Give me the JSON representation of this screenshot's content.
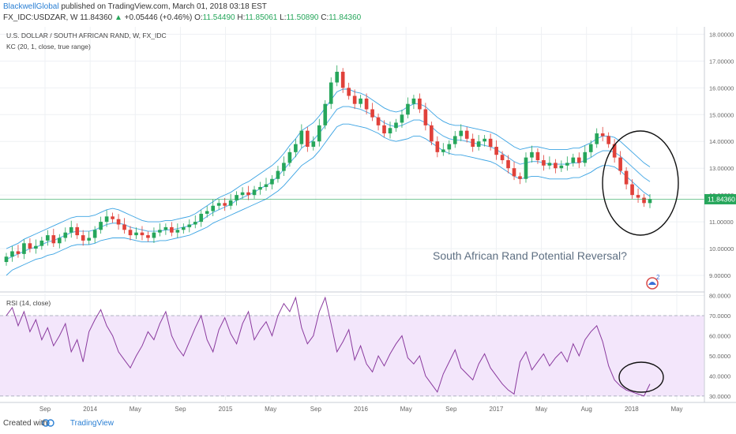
{
  "header": {
    "author": "BlackwellGlobal",
    "published": "published on TradingView.com, March 01, 2018 03:18 EST",
    "symbol": "FX_IDC:USDZAR, W",
    "last": "11.84360",
    "arrow": "▲",
    "change": "+0.05446 (+0.46%)",
    "o_label": "O:",
    "o_value": "11.54490",
    "h_label": "H:",
    "h_value": "11.85061",
    "l_label": "L:",
    "l_value": "11.50890",
    "c_label": "C:",
    "c_value": "11.84360"
  },
  "indicators": {
    "pair_title": "U.S. DOLLAR / SOUTH AFRICAN RAND, W, FX_IDC",
    "kc_label": "KC (20, 1, close, true range)",
    "rsi_label": "RSI (14, close)",
    "annotation": "South African Rand Potential Reversal?",
    "price_tag": "11.84360"
  },
  "footer": {
    "created_with": "Created with",
    "brand": "TradingView"
  },
  "colors": {
    "up": "#26a65b",
    "down": "#e0413a",
    "keltner": "#3aa3e3",
    "rsi_line": "#8a3a9e",
    "rsi_band": "#f3e6fb",
    "last_price": "#26a65b",
    "grid": "#eef0f4",
    "text": "#666666"
  },
  "chart_data": [
    {
      "type": "candlestick",
      "title": "U.S. DOLLAR / SOUTH AFRICAN RAND, W, FX_IDC",
      "subtitle": "KC (20, 1, close, true range)",
      "x_ticks": [
        "Sep",
        "2014",
        "May",
        "Sep",
        "2015",
        "May",
        "Sep",
        "2016",
        "May",
        "Sep",
        "2017",
        "May",
        "Aug",
        "2018",
        "May"
      ],
      "y_ticks": [
        "9.00000",
        "10.00000",
        "11.00000",
        "12.00000",
        "13.00000",
        "14.00000",
        "15.00000",
        "16.00000",
        "17.00000",
        "18.00000"
      ],
      "ylim": [
        8.5,
        18.1
      ],
      "last_value": 11.8436,
      "grid": true,
      "series": [
        {
          "name": "close",
          "values": [
            9.7,
            9.9,
            9.8,
            10.2,
            10.0,
            10.1,
            10.3,
            10.5,
            10.2,
            10.4,
            10.6,
            10.8,
            10.5,
            10.3,
            10.4,
            10.7,
            11.0,
            11.2,
            11.1,
            10.9,
            10.7,
            10.5,
            10.6,
            10.5,
            10.4,
            10.6,
            10.7,
            10.8,
            10.6,
            10.7,
            10.8,
            10.9,
            11.0,
            11.3,
            11.4,
            11.6,
            11.7,
            11.6,
            11.8,
            12.0,
            12.1,
            12.0,
            12.2,
            12.3,
            12.4,
            12.6,
            12.9,
            13.2,
            13.6,
            13.9,
            14.4,
            13.8,
            14.0,
            14.6,
            15.4,
            16.2,
            16.6,
            16.0,
            15.7,
            15.4,
            15.6,
            15.2,
            14.9,
            14.6,
            14.3,
            14.5,
            14.7,
            15.0,
            15.4,
            15.6,
            15.2,
            14.6,
            14.0,
            13.6,
            13.7,
            13.9,
            14.2,
            14.4,
            14.1,
            13.8,
            14.0,
            14.1,
            13.8,
            13.5,
            13.3,
            13.0,
            12.7,
            12.6,
            13.4,
            13.6,
            13.3,
            13.1,
            13.2,
            13.0,
            13.1,
            13.2,
            13.4,
            13.2,
            13.6,
            13.9,
            14.3,
            14.2,
            13.9,
            13.4,
            12.9,
            12.4,
            12.0,
            11.9,
            11.7,
            11.8436
          ]
        },
        {
          "name": "KC upper",
          "values": [
            10.0,
            10.1,
            10.2,
            10.35,
            10.45,
            10.55,
            10.65,
            10.75,
            10.85,
            10.95,
            11.05,
            11.15,
            11.2,
            11.2,
            11.2,
            11.25,
            11.35,
            11.45,
            11.5,
            11.45,
            11.35,
            11.25,
            11.15,
            11.05,
            11.0,
            11.0,
            11.0,
            11.05,
            11.05,
            11.1,
            11.15,
            11.2,
            11.3,
            11.45,
            11.6,
            11.75,
            11.9,
            12.0,
            12.1,
            12.25,
            12.4,
            12.5,
            12.65,
            12.8,
            12.95,
            13.1,
            13.3,
            13.55,
            13.85,
            14.1,
            14.4,
            14.55,
            14.7,
            14.95,
            15.25,
            15.55,
            15.85,
            15.95,
            15.95,
            15.85,
            15.8,
            15.7,
            15.55,
            15.4,
            15.25,
            15.15,
            15.1,
            15.15,
            15.3,
            15.4,
            15.4,
            15.3,
            15.1,
            14.9,
            14.75,
            14.65,
            14.6,
            14.6,
            14.55,
            14.5,
            14.45,
            14.4,
            14.35,
            14.25,
            14.1,
            13.95,
            13.8,
            13.7,
            13.75,
            13.8,
            13.8,
            13.75,
            13.7,
            13.7,
            13.7,
            13.7,
            13.75,
            13.75,
            13.85,
            13.95,
            14.1,
            14.2,
            14.2,
            14.15,
            14.0,
            13.8,
            13.6,
            13.4,
            13.2,
            13.05
          ]
        },
        {
          "name": "KC middle",
          "values": [
            9.6,
            9.7,
            9.8,
            9.9,
            10.0,
            10.05,
            10.15,
            10.25,
            10.3,
            10.4,
            10.5,
            10.6,
            10.65,
            10.65,
            10.65,
            10.7,
            10.8,
            10.9,
            10.95,
            10.95,
            10.9,
            10.8,
            10.75,
            10.7,
            10.65,
            10.65,
            10.65,
            10.7,
            10.7,
            10.75,
            10.8,
            10.85,
            10.95,
            11.05,
            11.2,
            11.35,
            11.45,
            11.55,
            11.65,
            11.8,
            11.9,
            12.0,
            12.1,
            12.25,
            12.35,
            12.5,
            12.7,
            12.95,
            13.2,
            13.45,
            13.75,
            13.9,
            14.05,
            14.3,
            14.6,
            14.9,
            15.2,
            15.3,
            15.3,
            15.25,
            15.2,
            15.1,
            15.0,
            14.85,
            14.7,
            14.6,
            14.55,
            14.6,
            14.7,
            14.8,
            14.8,
            14.7,
            14.55,
            14.35,
            14.2,
            14.1,
            14.05,
            14.05,
            14.0,
            13.95,
            13.9,
            13.85,
            13.8,
            13.7,
            13.55,
            13.4,
            13.25,
            13.15,
            13.2,
            13.25,
            13.25,
            13.2,
            13.15,
            13.15,
            13.15,
            13.15,
            13.2,
            13.2,
            13.3,
            13.4,
            13.55,
            13.65,
            13.65,
            13.6,
            13.45,
            13.25,
            13.05,
            12.85,
            12.65,
            12.5
          ]
        },
        {
          "name": "KC lower",
          "values": [
            9.0,
            9.2,
            9.3,
            9.4,
            9.5,
            9.6,
            9.65,
            9.75,
            9.8,
            9.9,
            10.0,
            10.1,
            10.15,
            10.15,
            10.15,
            10.2,
            10.3,
            10.35,
            10.4,
            10.4,
            10.4,
            10.35,
            10.3,
            10.25,
            10.25,
            10.25,
            10.3,
            10.3,
            10.35,
            10.4,
            10.45,
            10.5,
            10.6,
            10.7,
            10.8,
            10.95,
            11.05,
            11.15,
            11.25,
            11.35,
            11.45,
            11.55,
            11.65,
            11.75,
            11.85,
            12.0,
            12.15,
            12.35,
            12.6,
            12.85,
            13.1,
            13.25,
            13.4,
            13.65,
            13.95,
            14.25,
            14.55,
            14.65,
            14.65,
            14.6,
            14.55,
            14.5,
            14.4,
            14.3,
            14.15,
            14.05,
            14.0,
            14.05,
            14.1,
            14.2,
            14.2,
            14.1,
            13.95,
            13.8,
            13.65,
            13.55,
            13.5,
            13.5,
            13.45,
            13.4,
            13.35,
            13.3,
            13.25,
            13.15,
            13.0,
            12.85,
            12.7,
            12.6,
            12.65,
            12.7,
            12.7,
            12.65,
            12.6,
            12.6,
            12.6,
            12.6,
            12.65,
            12.65,
            12.75,
            12.85,
            13.0,
            13.1,
            13.1,
            13.05,
            12.9,
            12.7,
            12.5,
            12.3,
            12.1,
            11.95
          ]
        }
      ]
    },
    {
      "type": "line",
      "title": "RSI (14, close)",
      "y_ticks": [
        "30.0000",
        "40.0000",
        "50.0000",
        "60.0000",
        "70.0000",
        "80.0000"
      ],
      "ylim": [
        28,
        81
      ],
      "bands": [
        30,
        70
      ],
      "series": [
        {
          "name": "RSI",
          "values": [
            70,
            74,
            65,
            72,
            62,
            68,
            58,
            64,
            55,
            60,
            66,
            52,
            58,
            47,
            62,
            68,
            73,
            65,
            60,
            52,
            48,
            44,
            50,
            55,
            62,
            58,
            66,
            72,
            60,
            54,
            50,
            57,
            64,
            70,
            58,
            52,
            63,
            69,
            61,
            56,
            66,
            72,
            58,
            63,
            67,
            60,
            70,
            76,
            72,
            79,
            64,
            56,
            60,
            72,
            79,
            66,
            52,
            57,
            63,
            48,
            55,
            46,
            42,
            50,
            45,
            51,
            56,
            60,
            49,
            46,
            50,
            40,
            36,
            32,
            41,
            47,
            53,
            44,
            41,
            38,
            46,
            51,
            44,
            40,
            36,
            33,
            31,
            47,
            52,
            43,
            47,
            51,
            45,
            49,
            52,
            47,
            56,
            50,
            58,
            62,
            65,
            57,
            45,
            38,
            35,
            33,
            32,
            31,
            30,
            36
          ]
        }
      ]
    }
  ]
}
